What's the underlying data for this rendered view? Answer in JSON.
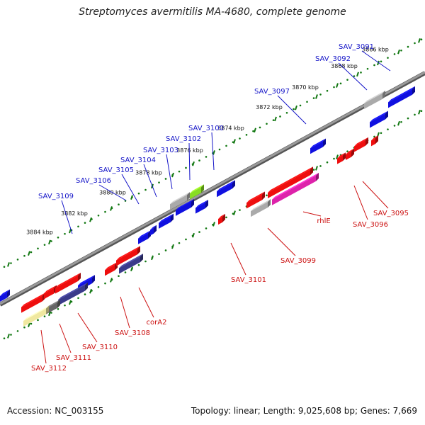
{
  "title": "Streptomyces avermitilis MA-4680, complete genome",
  "footer": {
    "accession": "Accession: NC_003155",
    "summary": "Topology: linear; Length: 9,025,608 bp; Genes: 7,669"
  },
  "colors": {
    "top_label": "#1515c8",
    "bottom_label": "#cc1111",
    "blue_gene": "#1010e0",
    "red_gene": "#ee0e0e",
    "grey_gene": "#aaaaaa",
    "green_gene": "#88dd22",
    "navy_gene": "#3a3a8a",
    "pink_gene": "#dd22aa",
    "yellow_gene": "#f0e8a0",
    "genome_line": "#777777",
    "tick": "#117711"
  },
  "kbp_ticks": [
    "3866 kbp",
    "3868 kbp",
    "3870 kbp",
    "3872 kbp",
    "3874 kbp",
    "3876 kbp",
    "3878 kbp",
    "3880 kbp",
    "3882 kbp",
    "3884 kbp"
  ],
  "top_genes": [
    "SAV_3091",
    "SAV_3092",
    "SAV_3097",
    "SAV_3100",
    "SAV_3102",
    "SAV_3103",
    "SAV_3104",
    "SAV_3105",
    "SAV_3106",
    "SAV_3109"
  ],
  "bottom_genes": [
    "SAV_3095",
    "SAV_3096",
    "rhlE",
    "SAV_3099",
    "SAV_3101",
    "corA2",
    "SAV_3108",
    "SAV_3110",
    "SAV_3111",
    "SAV_3112"
  ]
}
